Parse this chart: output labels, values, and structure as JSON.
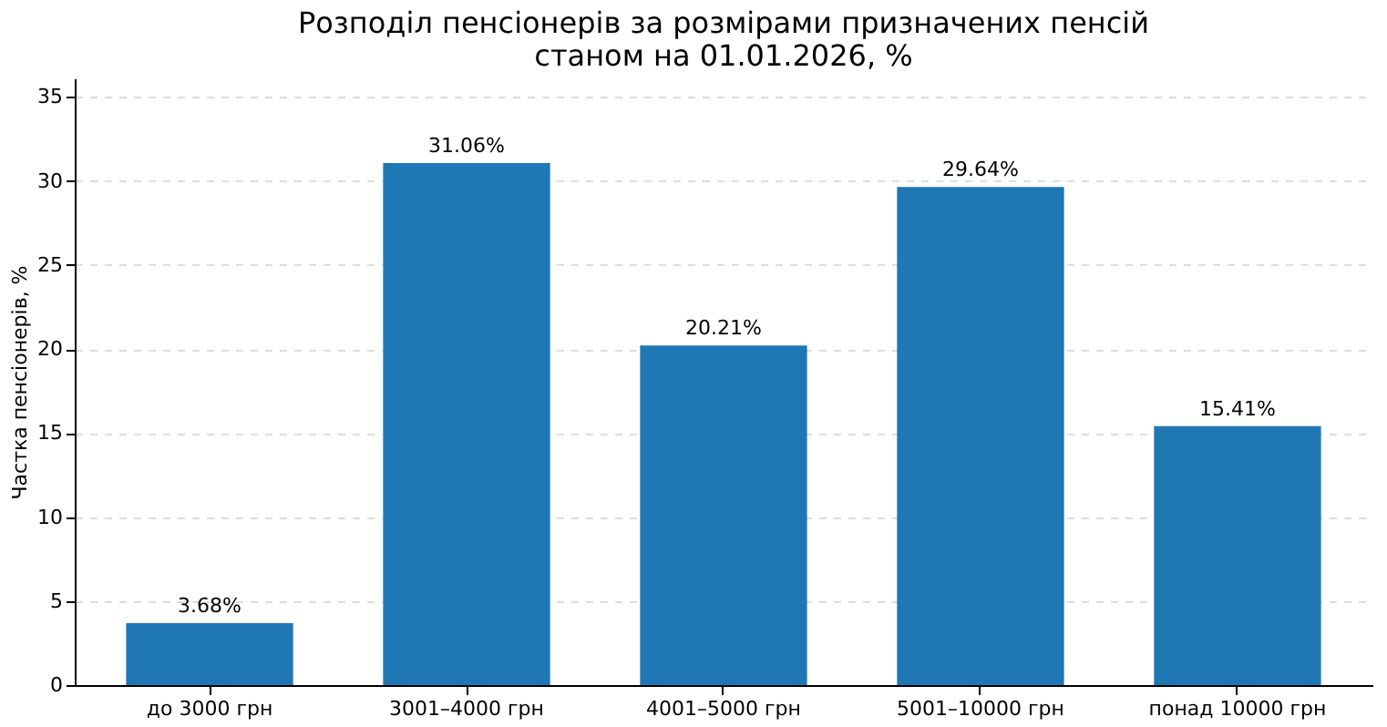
{
  "chart_data": {
    "type": "bar",
    "title": "Розподіл пенсіонерів за розмірами призначених пенсій\nстаном на 01.01.2026, %",
    "ylabel": "Частка пенсіонерів, %",
    "categories": [
      "до 3000 грн",
      "3001–4000 грн",
      "4001–5000 грн",
      "5001–10000 грн",
      "понад 10000 грн"
    ],
    "values": [
      3.68,
      31.06,
      20.21,
      29.64,
      15.41
    ],
    "value_labels": [
      "3.68%",
      "31.06%",
      "20.21%",
      "29.64%",
      "15.41%"
    ],
    "color": "#1f77b4",
    "ylim": [
      0,
      36.1
    ],
    "yticks": [
      0,
      5,
      10,
      15,
      20,
      25,
      30,
      35
    ],
    "grid": "y"
  }
}
